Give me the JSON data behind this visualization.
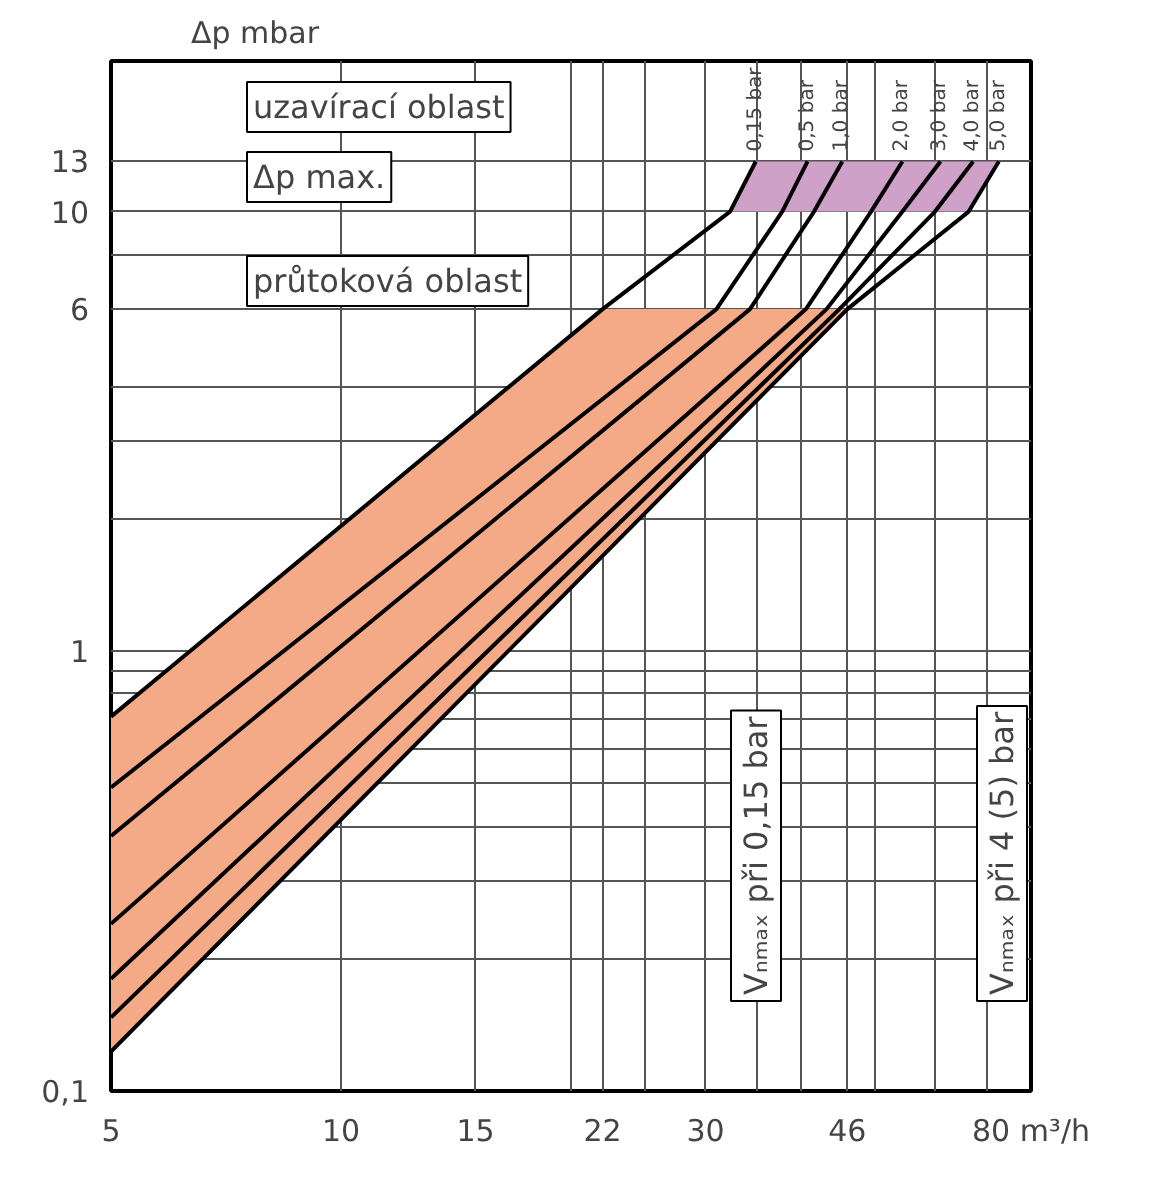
{
  "chart_data": {
    "type": "line",
    "ylabel": "Δp mbar",
    "log": "xy",
    "grid": true,
    "marker": "none",
    "line_style": "solid",
    "xlim": [
      5,
      80
    ],
    "ylim": [
      0.1,
      22
    ],
    "xticks": [
      5,
      10,
      15,
      {
        "value": 20,
        "label": null
      },
      22,
      {
        "value": 25,
        "label": null
      },
      30,
      {
        "value": 35,
        "label": null
      },
      {
        "value": 40,
        "label": null
      },
      46,
      {
        "value": 50,
        "label": null
      },
      {
        "value": 60,
        "label": null
      },
      {
        "value": 70,
        "label": null
      },
      {
        "value": 80,
        "label": "80 m³/h"
      }
    ],
    "yticks": [
      {
        "value": 0.1,
        "label": "0,1"
      },
      {
        "value": 0.2,
        "label": null
      },
      {
        "value": 0.3,
        "label": null
      },
      {
        "value": 0.4,
        "label": null
      },
      {
        "value": 0.5,
        "label": null
      },
      {
        "value": 0.6,
        "label": null
      },
      {
        "value": 0.7,
        "label": null
      },
      {
        "value": 0.8,
        "label": null
      },
      {
        "value": 0.9,
        "label": null
      },
      1,
      {
        "value": 2,
        "label": null
      },
      {
        "value": 3,
        "label": null
      },
      {
        "value": 4,
        "label": null
      },
      6,
      {
        "value": 8,
        "label": null
      },
      10,
      13
    ],
    "series": [
      {
        "type": "area",
        "color": "#f4aa86",
        "x": [
          5,
          22,
          46,
          5
        ],
        "values": [
          0.71,
          6,
          6,
          0.123
        ]
      },
      {
        "type": "area",
        "color": "#cfa0c8",
        "x": [
          32.3,
          34.9,
          72.6,
          66.3
        ],
        "values": [
          10,
          13,
          13,
          10
        ]
      },
      {
        "name": "0,15 bar",
        "color": "#000000",
        "x": [
          5,
          22,
          32.3,
          34.9
        ],
        "values": [
          0.71,
          6,
          10,
          13
        ]
      },
      {
        "name": "0,5 bar",
        "color": "#000000",
        "x": [
          5,
          31.0,
          37.8,
          40.8
        ],
        "values": [
          0.49,
          6,
          10,
          13
        ]
      },
      {
        "name": "1,0 bar",
        "color": "#000000",
        "x": [
          5,
          34.3,
          41.6,
          45.3
        ],
        "values": [
          0.38,
          6,
          10,
          13
        ]
      },
      {
        "name": "2,0 bar",
        "color": "#000000",
        "x": [
          5,
          40.6,
          49.4,
          54.3
        ],
        "values": [
          0.24,
          6,
          10,
          13
        ]
      },
      {
        "name": "3,0 bar",
        "color": "#000000",
        "x": [
          5,
          43.2,
          54.3,
          60.9
        ],
        "values": [
          0.18,
          6,
          10,
          13
        ]
      },
      {
        "name": "4,0 bar",
        "color": "#000000",
        "x": [
          5,
          44.9,
          59.9,
          67.2
        ],
        "values": [
          0.147,
          6,
          10,
          13
        ]
      },
      {
        "name": "5,0 bar",
        "color": "#000000",
        "x": [
          5,
          46,
          66.3,
          72.6
        ],
        "values": [
          0.123,
          6,
          10,
          13
        ]
      }
    ],
    "annotations": [
      "uzavírací oblast",
      "Δp max.",
      "průtoková oblast",
      "Vₙₘₐₓ při 0,15 bar",
      "Vₙₘₐₓ při 4 (5) bar"
    ]
  }
}
